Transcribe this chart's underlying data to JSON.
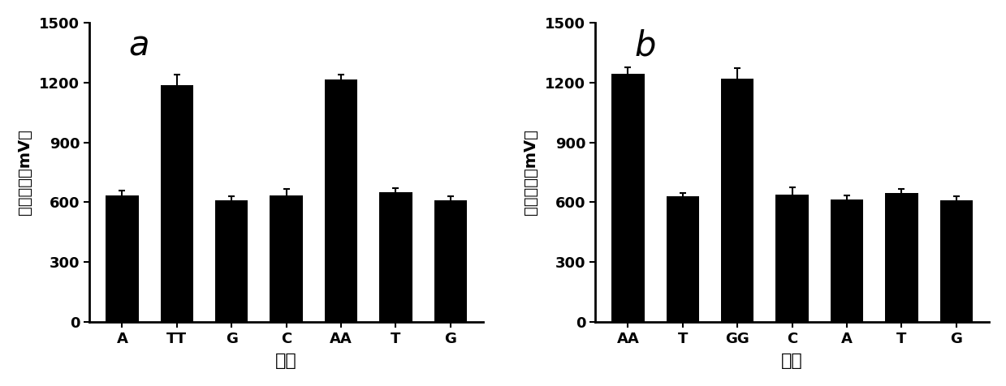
{
  "panel_a": {
    "label": "a",
    "categories": [
      "A",
      "TT",
      "G",
      "C",
      "AA",
      "T",
      "G"
    ],
    "values": [
      635,
      1185,
      610,
      635,
      1215,
      650,
      608
    ],
    "errors": [
      25,
      55,
      18,
      30,
      25,
      20,
      22
    ],
    "ylabel": "信号强度（mV）",
    "xlabel": "碎基",
    "ylim": [
      0,
      1500
    ],
    "yticks": [
      0,
      300,
      600,
      900,
      1200,
      1500
    ]
  },
  "panel_b": {
    "label": "b",
    "categories": [
      "AA",
      "T",
      "GG",
      "C",
      "A",
      "T",
      "G"
    ],
    "values": [
      1245,
      628,
      1220,
      640,
      615,
      648,
      608
    ],
    "errors": [
      30,
      18,
      50,
      35,
      18,
      20,
      22
    ],
    "ylabel": "信号强度（mV）",
    "xlabel": "碎基",
    "ylim": [
      0,
      1500
    ],
    "yticks": [
      0,
      300,
      600,
      900,
      1200,
      1500
    ]
  },
  "bar_color": "#000000",
  "background_color": "#ffffff",
  "figsize": [
    12.39,
    4.76
  ],
  "dpi": 100
}
